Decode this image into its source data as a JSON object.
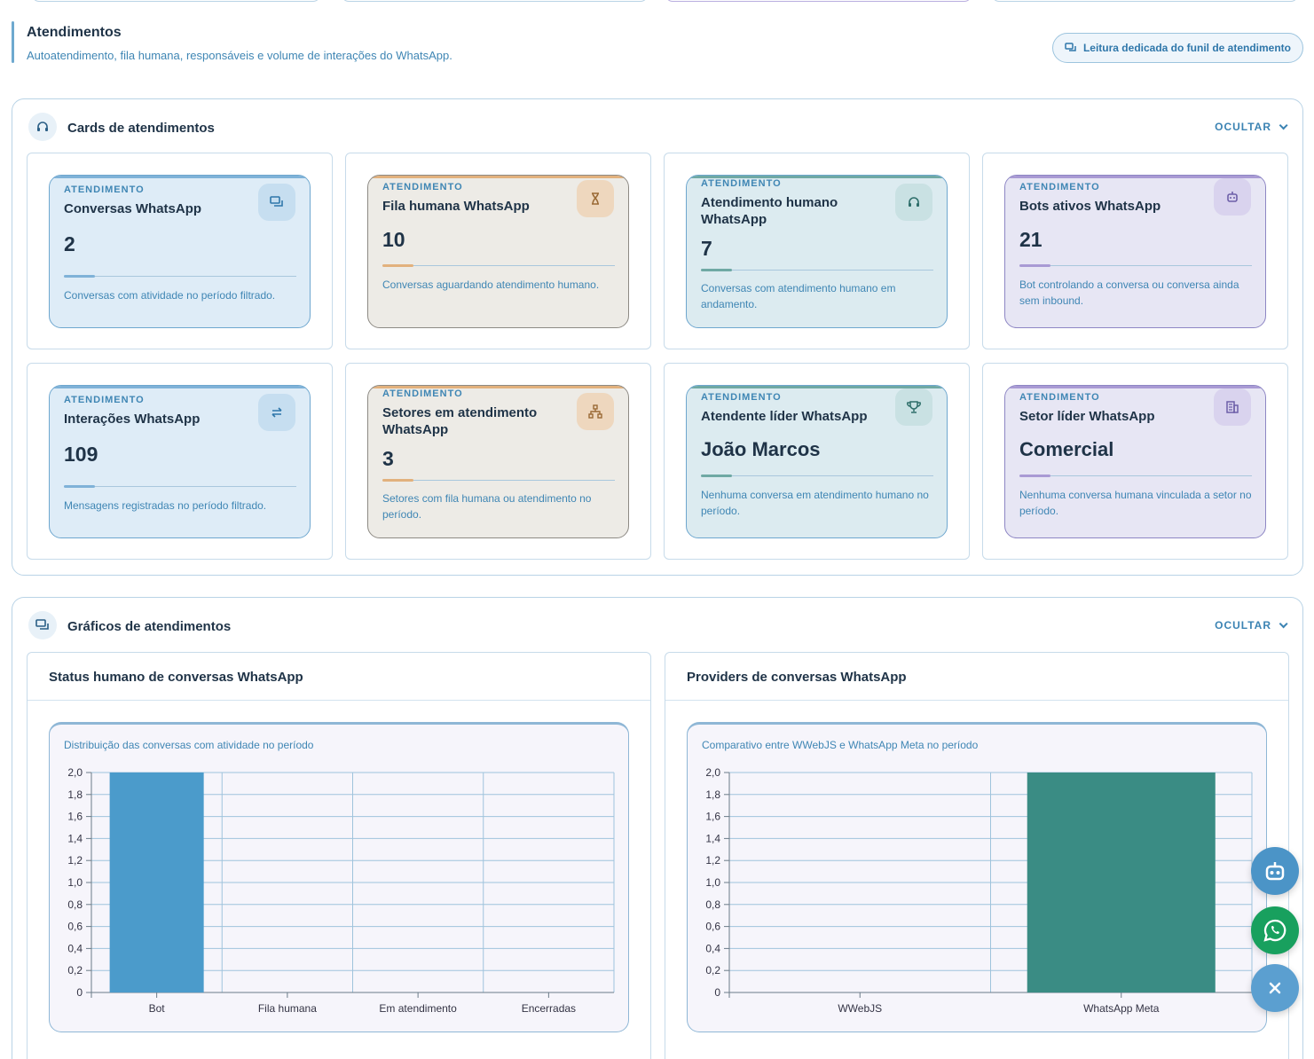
{
  "header": {
    "title": "Atendimentos",
    "subtitle": "Autoatendimento, fila humana, responsáveis e volume de interações do WhatsApp.",
    "funnel_button": "Leitura dedicada do funil de atendimento"
  },
  "cards_section": {
    "title": "Cards de atendimentos",
    "toggle": "OCULTAR",
    "cards": [
      {
        "kicker": "ATENDIMENTO",
        "title": "Conversas WhatsApp",
        "value": "2",
        "description": "Conversas com atividade no período filtrado.",
        "icon": "chat-icon",
        "tone": "blue"
      },
      {
        "kicker": "ATENDIMENTO",
        "title": "Fila humana WhatsApp",
        "value": "10",
        "description": "Conversas aguardando atendimento humano.",
        "icon": "hourglass-icon",
        "tone": "amber"
      },
      {
        "kicker": "ATENDIMENTO",
        "title": "Atendimento humano WhatsApp",
        "value": "7",
        "description": "Conversas com atendimento humano em andamento.",
        "icon": "headset-icon",
        "tone": "teal"
      },
      {
        "kicker": "ATENDIMENTO",
        "title": "Bots ativos WhatsApp",
        "value": "21",
        "description": "Bot controlando a conversa ou conversa ainda sem inbound.",
        "icon": "robot-icon",
        "tone": "violet"
      },
      {
        "kicker": "ATENDIMENTO",
        "title": "Interações WhatsApp",
        "value": "109",
        "description": "Mensagens registradas no período filtrado.",
        "icon": "swap-icon",
        "tone": "blue"
      },
      {
        "kicker": "ATENDIMENTO",
        "title": "Setores em atendimento WhatsApp",
        "value": "3",
        "description": "Setores com fila humana ou atendimento no período.",
        "icon": "sitemap-icon",
        "tone": "amber"
      },
      {
        "kicker": "ATENDIMENTO",
        "title": "Atendente líder WhatsApp",
        "value": "João Marcos",
        "description": "Nenhuma conversa em atendimento humano no período.",
        "icon": "trophy-icon",
        "tone": "teal"
      },
      {
        "kicker": "ATENDIMENTO",
        "title": "Setor líder WhatsApp",
        "value": "Comercial",
        "description": "Nenhuma conversa humana vinculada a setor no período.",
        "icon": "building-icon",
        "tone": "violet"
      }
    ]
  },
  "charts_section": {
    "title": "Gráficos de atendimentos",
    "toggle": "OCULTAR",
    "status_chart_title": "Status humano de conversas WhatsApp",
    "providers_chart_title": "Providers de conversas WhatsApp"
  },
  "chart_data": [
    {
      "type": "bar",
      "title": "Status humano de conversas WhatsApp",
      "subtitle": "Distribuição das conversas com atividade no período",
      "categories": [
        "Bot",
        "Fila humana",
        "Em atendimento",
        "Encerradas"
      ],
      "values": [
        2,
        0,
        0,
        0
      ],
      "ylim": [
        0,
        2
      ],
      "yticks": [
        "0",
        "0,2",
        "0,4",
        "0,6",
        "0,8",
        "1,0",
        "1,2",
        "1,4",
        "1,6",
        "1,8",
        "2,0"
      ],
      "grid": true,
      "color": "#4b9bcb"
    },
    {
      "type": "bar",
      "title": "Providers de conversas WhatsApp",
      "subtitle": "Comparativo entre WWebJS e WhatsApp Meta no período",
      "categories": [
        "WWebJS",
        "WhatsApp Meta"
      ],
      "values": [
        0,
        2
      ],
      "ylim": [
        0,
        2
      ],
      "yticks": [
        "0",
        "0,2",
        "0,4",
        "0,6",
        "0,8",
        "1,0",
        "1,2",
        "1,4",
        "1,6",
        "1,8",
        "2,0"
      ],
      "grid": true,
      "color": "#3a8c84"
    }
  ],
  "colors": {
    "accent": "#3f86b4",
    "whatsapp": "#18a05e"
  },
  "fabs": [
    "robot-icon",
    "whatsapp-icon",
    "close-icon"
  ]
}
